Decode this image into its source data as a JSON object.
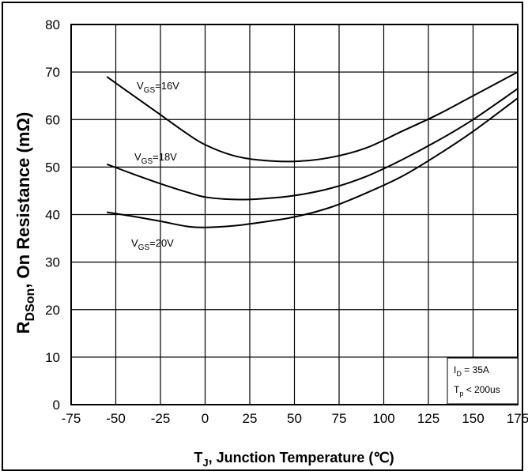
{
  "chart_data": {
    "type": "line",
    "xlabel": {
      "main": "T",
      "sub": "J",
      "rest": ", Junction Temperature (℃)"
    },
    "ylabel": {
      "main": "R",
      "sub": "DSon",
      "rest": ", On Resistance (mΩ)"
    },
    "xlim": [
      -75,
      175
    ],
    "ylim": [
      0,
      80
    ],
    "xticks": [
      -75,
      -50,
      -25,
      0,
      25,
      50,
      75,
      100,
      125,
      150,
      175
    ],
    "yticks": [
      0,
      10,
      20,
      30,
      40,
      50,
      60,
      70,
      80
    ],
    "grid": true,
    "series": [
      {
        "name": "V_GS=16V",
        "label": {
          "main": "V",
          "sub": "GS",
          "rest": "=16V"
        },
        "x": [
          -55,
          -40,
          -25,
          -10,
          0,
          15,
          30,
          50,
          70,
          90,
          110,
          130,
          150,
          175
        ],
        "y": [
          69,
          65,
          61,
          57,
          54.7,
          52.5,
          51.5,
          51.2,
          52,
          54,
          57.5,
          61,
          65,
          70
        ]
      },
      {
        "name": "V_GS=18V",
        "label": {
          "main": "V",
          "sub": "GS",
          "rest": "=18V"
        },
        "x": [
          -55,
          -40,
          -25,
          -10,
          0,
          15,
          30,
          50,
          70,
          90,
          110,
          130,
          150,
          175
        ],
        "y": [
          50.6,
          48.5,
          46.5,
          44.7,
          43.7,
          43.2,
          43.3,
          44,
          45.5,
          48,
          51.5,
          55.5,
          60,
          66.5
        ]
      },
      {
        "name": "V_GS=20V",
        "label": {
          "main": "V",
          "sub": "GS",
          "rest": "=20V"
        },
        "x": [
          -55,
          -40,
          -25,
          -10,
          0,
          15,
          30,
          50,
          70,
          90,
          110,
          130,
          150,
          175
        ],
        "y": [
          40.5,
          39.6,
          38.6,
          37.5,
          37.3,
          37.6,
          38.3,
          39.5,
          41.5,
          44.5,
          48,
          52.5,
          57.5,
          64.5
        ]
      }
    ],
    "annotation": {
      "line1": {
        "main": "I",
        "sub": "D",
        "rest": " = 35A"
      },
      "line2": {
        "main": "T",
        "sub": "p",
        "rest": " < 200us"
      }
    }
  }
}
